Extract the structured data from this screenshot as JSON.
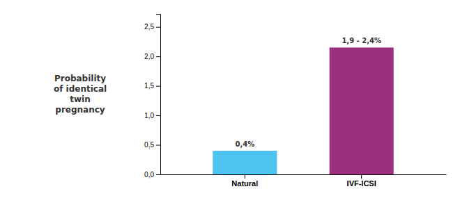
{
  "chart_data": {
    "type": "bar",
    "ylabel": "Probability\nof identical\ntwin\npregnancy",
    "categories": [
      "Natural",
      "IVF-ICSI"
    ],
    "values": [
      0.4,
      2.15
    ],
    "value_labels": [
      "0,4%",
      "1,9 - 2,4%"
    ],
    "colors": [
      "#4dc3f0",
      "#9b3080"
    ],
    "data_labels": true,
    "ylim": [
      0,
      2.72
    ],
    "yticks": [
      {
        "value": 0.0,
        "label": "0,0"
      },
      {
        "value": 0.5,
        "label": "0,5"
      },
      {
        "value": 1.0,
        "label": "1,0"
      },
      {
        "value": 1.5,
        "label": "1,5"
      },
      {
        "value": 2.0,
        "label": "2,0"
      },
      {
        "value": 2.5,
        "label": "2,5"
      }
    ],
    "grid": false
  }
}
